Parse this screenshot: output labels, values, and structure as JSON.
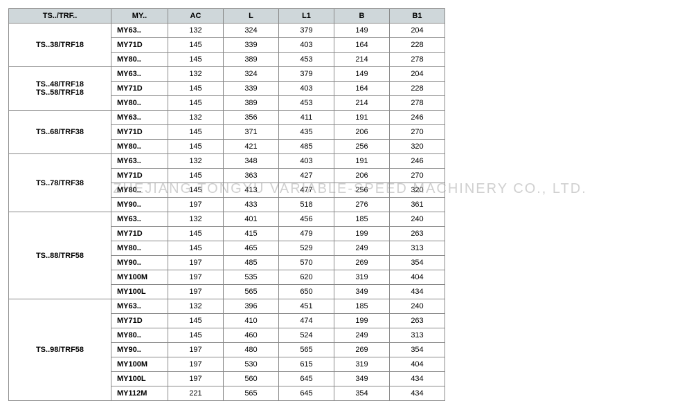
{
  "watermark": "ZHEJIANG TONGYU VARIABLE-SPEED MACHINERY CO., LTD.",
  "table": {
    "type": "table",
    "header_bg": "#cfd7da",
    "border_color": "#888888",
    "columns": [
      "TS../TRF..",
      "MY..",
      "AC",
      "L",
      "L1",
      "B",
      "B1"
    ],
    "groups": [
      {
        "ts": "TS..38/TRF18",
        "rows": [
          {
            "my": "MY63..",
            "ac": 132,
            "l": 324,
            "l1": 379,
            "b": 149,
            "b1": 204
          },
          {
            "my": "MY71D",
            "ac": 145,
            "l": 339,
            "l1": 403,
            "b": 164,
            "b1": 228
          },
          {
            "my": "MY80..",
            "ac": 145,
            "l": 389,
            "l1": 453,
            "b": 214,
            "b1": 278
          }
        ]
      },
      {
        "ts": "TS..48/TRF18\nTS..58/TRF18",
        "rows": [
          {
            "my": "MY63..",
            "ac": 132,
            "l": 324,
            "l1": 379,
            "b": 149,
            "b1": 204
          },
          {
            "my": "MY71D",
            "ac": 145,
            "l": 339,
            "l1": 403,
            "b": 164,
            "b1": 228
          },
          {
            "my": "MY80..",
            "ac": 145,
            "l": 389,
            "l1": 453,
            "b": 214,
            "b1": 278
          }
        ]
      },
      {
        "ts": "TS..68/TRF38",
        "rows": [
          {
            "my": "MY63..",
            "ac": 132,
            "l": 356,
            "l1": 411,
            "b": 191,
            "b1": 246
          },
          {
            "my": "MY71D",
            "ac": 145,
            "l": 371,
            "l1": 435,
            "b": 206,
            "b1": 270
          },
          {
            "my": "MY80..",
            "ac": 145,
            "l": 421,
            "l1": 485,
            "b": 256,
            "b1": 320
          }
        ]
      },
      {
        "ts": "TS..78/TRF38",
        "rows": [
          {
            "my": "MY63..",
            "ac": 132,
            "l": 348,
            "l1": 403,
            "b": 191,
            "b1": 246
          },
          {
            "my": "MY71D",
            "ac": 145,
            "l": 363,
            "l1": 427,
            "b": 206,
            "b1": 270
          },
          {
            "my": "MY80..",
            "ac": 145,
            "l": 413,
            "l1": 477,
            "b": 256,
            "b1": 320
          },
          {
            "my": "MY90..",
            "ac": 197,
            "l": 433,
            "l1": 518,
            "b": 276,
            "b1": 361
          }
        ]
      },
      {
        "ts": "TS..88/TRF58",
        "rows": [
          {
            "my": "MY63..",
            "ac": 132,
            "l": 401,
            "l1": 456,
            "b": 185,
            "b1": 240
          },
          {
            "my": "MY71D",
            "ac": 145,
            "l": 415,
            "l1": 479,
            "b": 199,
            "b1": 263
          },
          {
            "my": "MY80..",
            "ac": 145,
            "l": 465,
            "l1": 529,
            "b": 249,
            "b1": 313
          },
          {
            "my": "MY90..",
            "ac": 197,
            "l": 485,
            "l1": 570,
            "b": 269,
            "b1": 354
          },
          {
            "my": "MY100M",
            "ac": 197,
            "l": 535,
            "l1": 620,
            "b": 319,
            "b1": 404
          },
          {
            "my": "MY100L",
            "ac": 197,
            "l": 565,
            "l1": 650,
            "b": 349,
            "b1": 434
          }
        ]
      },
      {
        "ts": "TS..98/TRF58",
        "rows": [
          {
            "my": "MY63..",
            "ac": 132,
            "l": 396,
            "l1": 451,
            "b": 185,
            "b1": 240
          },
          {
            "my": "MY71D",
            "ac": 145,
            "l": 410,
            "l1": 474,
            "b": 199,
            "b1": 263
          },
          {
            "my": "MY80..",
            "ac": 145,
            "l": 460,
            "l1": 524,
            "b": 249,
            "b1": 313
          },
          {
            "my": "MY90..",
            "ac": 197,
            "l": 480,
            "l1": 565,
            "b": 269,
            "b1": 354
          },
          {
            "my": "MY100M",
            "ac": 197,
            "l": 530,
            "l1": 615,
            "b": 319,
            "b1": 404
          },
          {
            "my": "MY100L",
            "ac": 197,
            "l": 560,
            "l1": 645,
            "b": 349,
            "b1": 434
          },
          {
            "my": "MY112M",
            "ac": 221,
            "l": 565,
            "l1": 645,
            "b": 354,
            "b1": 434
          }
        ]
      }
    ]
  }
}
